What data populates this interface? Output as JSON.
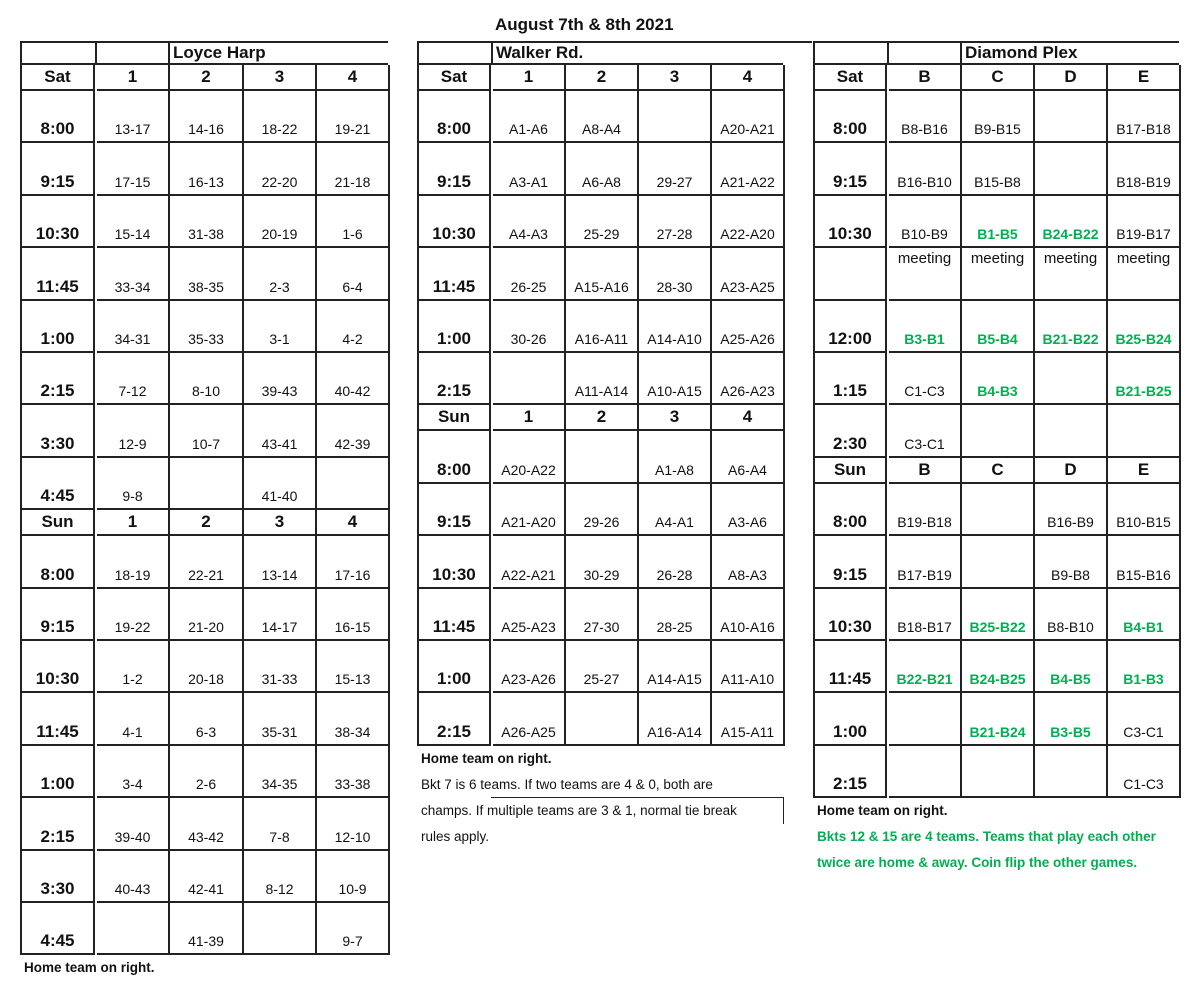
{
  "title": "August 7th & 8th 2021",
  "colors": {
    "green": "#00b050",
    "text": "#111111"
  },
  "venues": [
    {
      "name": "Loyce Harp",
      "sections": [
        {
          "day": "Sat",
          "cols": [
            "1",
            "2",
            "3",
            "4"
          ],
          "rows": [
            {
              "time": "8:00",
              "cells": [
                "13-17",
                "14-16",
                "18-22",
                "19-21"
              ]
            },
            {
              "time": "9:15",
              "cells": [
                "17-15",
                "16-13",
                "22-20",
                "21-18"
              ]
            },
            {
              "time": "10:30",
              "cells": [
                "15-14",
                "31-38",
                "20-19",
                "1-6"
              ]
            },
            {
              "time": "11:45",
              "cells": [
                "33-34",
                "38-35",
                "2-3",
                "6-4"
              ]
            },
            {
              "time": "1:00",
              "cells": [
                "34-31",
                "35-33",
                "3-1",
                "4-2"
              ]
            },
            {
              "time": "2:15",
              "cells": [
                "7-12",
                "8-10",
                "39-43",
                "40-42"
              ]
            },
            {
              "time": "3:30",
              "cells": [
                "12-9",
                "10-7",
                "43-41",
                "42-39"
              ]
            },
            {
              "time": "4:45",
              "cells": [
                "9-8",
                "",
                "41-40",
                ""
              ]
            }
          ]
        },
        {
          "day": "Sun",
          "cols": [
            "1",
            "2",
            "3",
            "4"
          ],
          "rows": [
            {
              "time": "8:00",
              "cells": [
                "18-19",
                "22-21",
                "13-14",
                "17-16"
              ]
            },
            {
              "time": "9:15",
              "cells": [
                "19-22",
                "21-20",
                "14-17",
                "16-15"
              ]
            },
            {
              "time": "10:30",
              "cells": [
                "1-2",
                "20-18",
                "31-33",
                "15-13"
              ]
            },
            {
              "time": "11:45",
              "cells": [
                "4-1",
                "6-3",
                "35-31",
                "38-34"
              ]
            },
            {
              "time": "1:00",
              "cells": [
                "3-4",
                "2-6",
                "34-35",
                "33-38"
              ]
            },
            {
              "time": "2:15",
              "cells": [
                "39-40",
                "43-42",
                "7-8",
                "12-10"
              ]
            },
            {
              "time": "3:30",
              "cells": [
                "40-43",
                "42-41",
                "8-12",
                "10-9"
              ]
            },
            {
              "time": "4:45",
              "cells": [
                "",
                "41-39",
                "",
                "9-7"
              ]
            }
          ]
        }
      ],
      "notes": [
        {
          "text": "Home team on right.",
          "style": "bold"
        }
      ]
    },
    {
      "name": "Walker Rd.",
      "sections": [
        {
          "day": "Sat",
          "cols": [
            "1",
            "2",
            "3",
            "4"
          ],
          "rows": [
            {
              "time": "8:00",
              "cells": [
                "A1-A6",
                "A8-A4",
                "",
                "A20-A21"
              ]
            },
            {
              "time": "9:15",
              "cells": [
                "A3-A1",
                "A6-A8",
                "29-27",
                "A21-A22"
              ]
            },
            {
              "time": "10:30",
              "cells": [
                "A4-A3",
                "25-29",
                "27-28",
                "A22-A20"
              ]
            },
            {
              "time": "11:45",
              "cells": [
                "26-25",
                "A15-A16",
                "28-30",
                "A23-A25"
              ]
            },
            {
              "time": "1:00",
              "cells": [
                "30-26",
                "A16-A11",
                "A14-A10",
                "A25-A26"
              ]
            },
            {
              "time": "2:15",
              "cells": [
                "",
                "A11-A14",
                "A10-A15",
                "A26-A23"
              ]
            }
          ]
        },
        {
          "day": "Sun",
          "cols": [
            "1",
            "2",
            "3",
            "4"
          ],
          "rows": [
            {
              "time": "8:00",
              "cells": [
                "A20-A22",
                "",
                "A1-A8",
                "A6-A4"
              ]
            },
            {
              "time": "9:15",
              "cells": [
                "A21-A20",
                "29-26",
                "A4-A1",
                "A3-A6"
              ]
            },
            {
              "time": "10:30",
              "cells": [
                "A22-A21",
                "30-29",
                "26-28",
                "A8-A3"
              ]
            },
            {
              "time": "11:45",
              "cells": [
                "A25-A23",
                "27-30",
                "28-25",
                "A10-A16"
              ]
            },
            {
              "time": "1:00",
              "cells": [
                "A23-A26",
                "25-27",
                "A14-A15",
                "A11-A10"
              ]
            },
            {
              "time": "2:15",
              "cells": [
                "A26-A25",
                "",
                "A16-A14",
                "A15-A11"
              ]
            }
          ]
        }
      ],
      "notes": [
        {
          "text": "Home team on right.",
          "style": "bold"
        },
        {
          "text": "Bkt 7 is 6 teams. If two teams are 4 & 0, both are",
          "style": "normal"
        },
        {
          "text": "champs. If multiple teams are 3 & 1, normal tie break",
          "style": "normal"
        },
        {
          "text": "rules apply.",
          "style": "normal"
        }
      ]
    },
    {
      "name": "Diamond Plex",
      "sections": [
        {
          "day": "Sat",
          "cols": [
            "B",
            "C",
            "D",
            "E"
          ],
          "rows": [
            {
              "time": "8:00",
              "cells": [
                "B8-B16",
                "B9-B15",
                "",
                "B17-B18"
              ]
            },
            {
              "time": "9:15",
              "cells": [
                "B16-B10",
                "B15-B8",
                "",
                "B18-B19"
              ]
            },
            {
              "time": "10:30",
              "cells": [
                "B10-B9",
                {
                  "text": "B1-B5",
                  "color": "green"
                },
                {
                  "text": "B24-B22",
                  "color": "green"
                },
                "B19-B17"
              ]
            },
            {
              "time": "",
              "cells": [
                "meeting",
                "meeting",
                "meeting",
                "meeting"
              ]
            },
            {
              "time": "12:00",
              "cells": [
                {
                  "text": "B3-B1",
                  "color": "green"
                },
                {
                  "text": "B5-B4",
                  "color": "green"
                },
                {
                  "text": "B21-B22",
                  "color": "green"
                },
                {
                  "text": "B25-B24",
                  "color": "green"
                }
              ]
            },
            {
              "time": "1:15",
              "cells": [
                "C1-C3",
                {
                  "text": "B4-B3",
                  "color": "green"
                },
                "",
                {
                  "text": "B21-B25",
                  "color": "green"
                }
              ]
            },
            {
              "time": "2:30",
              "cells": [
                "C3-C1",
                "",
                "",
                ""
              ]
            }
          ]
        },
        {
          "day": "Sun",
          "cols": [
            "B",
            "C",
            "D",
            "E"
          ],
          "rows": [
            {
              "time": "8:00",
              "cells": [
                "B19-B18",
                "",
                "B16-B9",
                "B10-B15"
              ]
            },
            {
              "time": "9:15",
              "cells": [
                "B17-B19",
                "",
                "B9-B8",
                "B15-B16"
              ]
            },
            {
              "time": "10:30",
              "cells": [
                "B18-B17",
                {
                  "text": "B25-B22",
                  "color": "green"
                },
                "B8-B10",
                {
                  "text": "B4-B1",
                  "color": "green"
                }
              ]
            },
            {
              "time": "11:45",
              "cells": [
                {
                  "text": "B22-B21",
                  "color": "green"
                },
                {
                  "text": "B24-B25",
                  "color": "green"
                },
                {
                  "text": "B4-B5",
                  "color": "green"
                },
                {
                  "text": "B1-B3",
                  "color": "green"
                }
              ]
            },
            {
              "time": "1:00",
              "cells": [
                "",
                {
                  "text": "B21-B24",
                  "color": "green"
                },
                {
                  "text": "B3-B5",
                  "color": "green"
                },
                "C3-C1"
              ]
            },
            {
              "time": "2:15",
              "cells": [
                "",
                "",
                "",
                "C1-C3"
              ]
            }
          ]
        }
      ],
      "notes": [
        {
          "text": "Home team on right.",
          "style": "bold"
        },
        {
          "text": "Bkts 12 & 15 are 4 teams. Teams that play each other",
          "style": "greenbold"
        },
        {
          "text": "twice are home & away. Coin flip the other games.",
          "style": "greenbold"
        }
      ]
    }
  ]
}
